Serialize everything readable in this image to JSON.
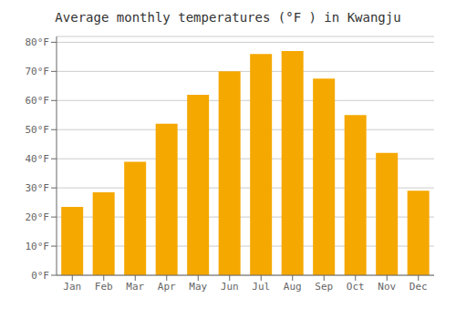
{
  "chart_data": {
    "type": "bar",
    "title": "Average monthly temperatures (°F ) in Kwangju",
    "categories": [
      "Jan",
      "Feb",
      "Mar",
      "Apr",
      "May",
      "Jun",
      "Jul",
      "Aug",
      "Sep",
      "Oct",
      "Nov",
      "Dec"
    ],
    "values": [
      23.5,
      28.5,
      39.0,
      52.0,
      62.0,
      70.0,
      76.0,
      77.0,
      67.5,
      55.0,
      42.0,
      29.0
    ],
    "color": "#F5A800",
    "ylim": [
      0,
      82
    ],
    "yticks": [
      {
        "value": 0,
        "label": "0°F"
      },
      {
        "value": 10,
        "label": "10°F"
      },
      {
        "value": 20,
        "label": "20°F"
      },
      {
        "value": 30,
        "label": "30°F"
      },
      {
        "value": 40,
        "label": "40°F"
      },
      {
        "value": 50,
        "label": "50°F"
      },
      {
        "value": 60,
        "label": "60°F"
      },
      {
        "value": 70,
        "label": "70°F"
      },
      {
        "value": 80,
        "label": "80°F"
      }
    ],
    "grid": true
  }
}
